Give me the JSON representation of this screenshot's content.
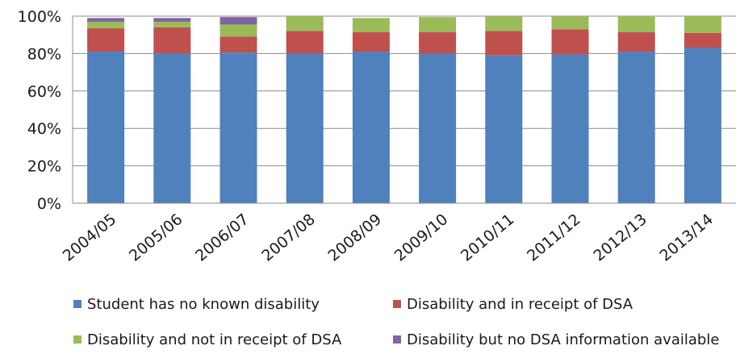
{
  "chart_data": {
    "type": "bar",
    "stacked": true,
    "categories": [
      "2004/05",
      "2005/06",
      "2006/07",
      "2007/08",
      "2008/09",
      "2009/10",
      "2010/11",
      "2011/12",
      "2012/13",
      "2013/14"
    ],
    "series": [
      {
        "name": "Student has no known disability",
        "color": "#4f81bd",
        "values": [
          81,
          80,
          80.5,
          80,
          81,
          80,
          79,
          79.5,
          81,
          83
        ]
      },
      {
        "name": "Disability and in receipt of DSA",
        "color": "#c0504d",
        "values": [
          12.5,
          14,
          8.5,
          12,
          10.5,
          11.5,
          13,
          13.5,
          10.5,
          8
        ]
      },
      {
        "name": "Disability and not in receipt of DSA",
        "color": "#9bbb59",
        "values": [
          3.5,
          3,
          6.5,
          8,
          7.5,
          8,
          8,
          7,
          8.5,
          9
        ]
      },
      {
        "name": "Disability but no DSA information available",
        "color": "#8064a2",
        "values": [
          2,
          2,
          4,
          0,
          0,
          0,
          0,
          0,
          0,
          0
        ]
      }
    ],
    "ylim": [
      0,
      100
    ],
    "yticks": [
      "0%",
      "20%",
      "40%",
      "60%",
      "80%",
      "100%"
    ],
    "grid": true,
    "legend_position": "bottom"
  }
}
